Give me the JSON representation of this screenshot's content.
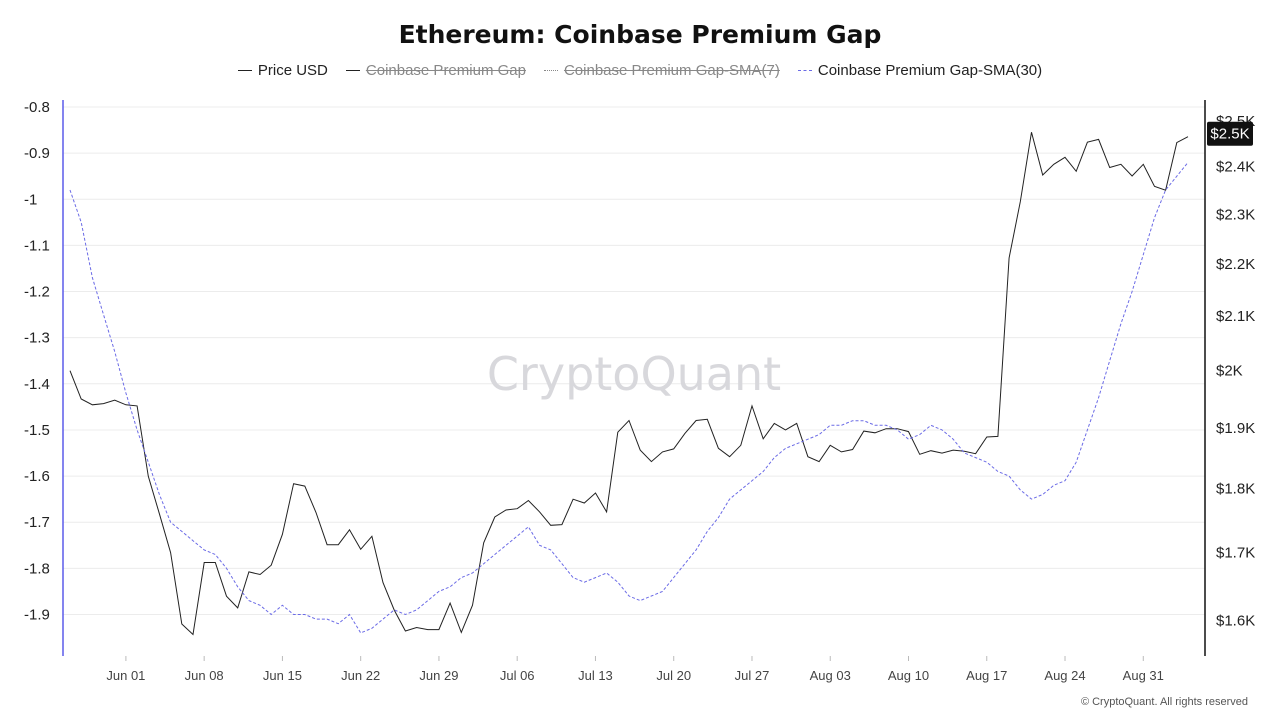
{
  "colors": {
    "price": "#222222",
    "sma30": "#6b6be6",
    "left_axis": "#5b5bea",
    "grid": "#ececec",
    "badge_bg": "#111111",
    "badge_fg": "#ffffff"
  },
  "watermark": "CryptoQuant",
  "footer": "© CryptoQuant. All rights reserved",
  "legend": [
    {
      "label": "Price USD",
      "style": "solid",
      "enabled": true
    },
    {
      "label": "Coinbase Premium Gap",
      "style": "solid",
      "enabled": false
    },
    {
      "label": "Coinbase Premium Gap-SMA(7)",
      "style": "dotted",
      "enabled": false
    },
    {
      "label": "Coinbase Premium Gap-SMA(30)",
      "style": "dashed",
      "enabled": true
    }
  ],
  "chart_data": {
    "type": "line",
    "title": "Ethereum: Coinbase Premium Gap",
    "x": {
      "start_date": "2024-05-27",
      "tick_labels": [
        "Jun 01",
        "Jun 08",
        "Jun 15",
        "Jun 22",
        "Jun 29",
        "Jul 06",
        "Jul 13",
        "Jul 20",
        "Jul 27",
        "Aug 03",
        "Aug 10",
        "Aug 17",
        "Aug 24",
        "Aug 31"
      ],
      "tick_dates": [
        "2024-06-01",
        "2024-06-08",
        "2024-06-15",
        "2024-06-22",
        "2024-06-29",
        "2024-07-06",
        "2024-07-13",
        "2024-07-20",
        "2024-07-27",
        "2024-08-03",
        "2024-08-10",
        "2024-08-17",
        "2024-08-24",
        "2024-08-31"
      ]
    },
    "left_axis": {
      "ticks": [
        "-0.8",
        "-0.9",
        "-1",
        "-1.1",
        "-1.2",
        "-1.3",
        "-1.4",
        "-1.5",
        "-1.6",
        "-1.7",
        "-1.8",
        "-1.9"
      ],
      "range": [
        -1.99,
        -0.8
      ]
    },
    "right_axis": {
      "scale": "log",
      "ticks": [
        "$2.5K",
        "$2.4K",
        "$2.3K",
        "$2.2K",
        "$2.1K",
        "$2K",
        "$1.9K",
        "$1.8K",
        "$1.7K",
        "$1.6K"
      ],
      "tick_values": [
        2500,
        2400,
        2300,
        2200,
        2100,
        2000,
        1900,
        1800,
        1700,
        1600
      ],
      "range": [
        1550,
        2520
      ],
      "current_value_label": "$2.5K"
    },
    "series": [
      {
        "name": "Price USD",
        "axis": "right",
        "values": [
          2000,
          1950,
          1940,
          1942,
          1948,
          1940,
          1938,
          1820,
          1760,
          1700,
          1595,
          1580,
          1685,
          1685,
          1635,
          1618,
          1671,
          1667,
          1681,
          1728,
          1808,
          1804,
          1762,
          1712,
          1712,
          1735,
          1705,
          1725,
          1655,
          1615,
          1585,
          1590,
          1587,
          1587,
          1625,
          1583,
          1622,
          1715,
          1755,
          1766,
          1768,
          1781,
          1763,
          1742,
          1743,
          1783,
          1777,
          1793,
          1763,
          1893,
          1913,
          1863,
          1844,
          1860,
          1865,
          1891,
          1913,
          1915,
          1866,
          1852,
          1871,
          1938,
          1882,
          1908,
          1897,
          1908,
          1852,
          1844,
          1871,
          1860,
          1864,
          1895,
          1892,
          1899,
          1899,
          1894,
          1856,
          1862,
          1858,
          1863,
          1861,
          1857,
          1885,
          1886,
          2212,
          2326,
          2475,
          2382,
          2405,
          2420,
          2390,
          2453,
          2459,
          2398,
          2405,
          2380,
          2405,
          2358,
          2350,
          2452,
          2465
        ]
      },
      {
        "name": "Coinbase Premium Gap-SMA(30)",
        "axis": "left",
        "values": [
          -0.98,
          -1.05,
          -1.17,
          -1.25,
          -1.33,
          -1.42,
          -1.5,
          -1.57,
          -1.64,
          -1.7,
          -1.72,
          -1.74,
          -1.76,
          -1.77,
          -1.8,
          -1.84,
          -1.87,
          -1.88,
          -1.9,
          -1.88,
          -1.9,
          -1.9,
          -1.91,
          -1.91,
          -1.92,
          -1.9,
          -1.94,
          -1.93,
          -1.91,
          -1.89,
          -1.9,
          -1.89,
          -1.87,
          -1.85,
          -1.84,
          -1.82,
          -1.81,
          -1.79,
          -1.77,
          -1.75,
          -1.73,
          -1.71,
          -1.75,
          -1.76,
          -1.79,
          -1.82,
          -1.83,
          -1.82,
          -1.81,
          -1.83,
          -1.86,
          -1.87,
          -1.86,
          -1.85,
          -1.82,
          -1.79,
          -1.76,
          -1.72,
          -1.69,
          -1.65,
          -1.63,
          -1.61,
          -1.59,
          -1.56,
          -1.54,
          -1.53,
          -1.52,
          -1.51,
          -1.49,
          -1.49,
          -1.48,
          -1.48,
          -1.49,
          -1.49,
          -1.5,
          -1.52,
          -1.51,
          -1.49,
          -1.5,
          -1.52,
          -1.55,
          -1.56,
          -1.57,
          -1.59,
          -1.6,
          -1.63,
          -1.65,
          -1.64,
          -1.62,
          -1.61,
          -1.57,
          -1.5,
          -1.43,
          -1.35,
          -1.27,
          -1.2,
          -1.12,
          -1.04,
          -0.98,
          -0.95,
          -0.92
        ]
      }
    ]
  }
}
